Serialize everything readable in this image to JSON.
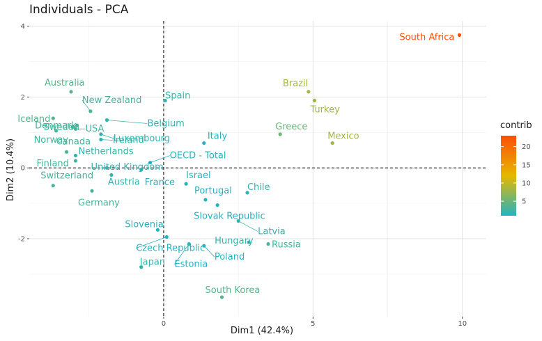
{
  "chart_data": {
    "type": "scatter",
    "title": "Individuals - PCA",
    "xlabel": "Dim1 (42.4%)",
    "ylabel": "Dim2 (10.4%)",
    "xlim": [
      -4.5,
      10.8
    ],
    "ylim": [
      -4.2,
      4.15
    ],
    "x_ticks": [
      0,
      5,
      10
    ],
    "y_ticks": [
      -2,
      0,
      2,
      4
    ],
    "grid": true,
    "reference_lines": {
      "x": 0,
      "y": 0
    },
    "legend": {
      "title": "contrib",
      "position": "right",
      "ticks": [
        5,
        10,
        15,
        20
      ]
    },
    "colors": {
      "low": "#24b3bf",
      "mid": "#e6b800",
      "high": "#fc4e07"
    },
    "points": [
      {
        "name": "South Africa",
        "x": 9.9,
        "y": 3.75,
        "contrib": 23
      },
      {
        "name": "Australia",
        "x": -3.1,
        "y": 2.15,
        "contrib": 4
      },
      {
        "name": "Iceland",
        "x": -3.7,
        "y": 1.4,
        "contrib": 4
      },
      {
        "name": "New Zealand",
        "x": -2.45,
        "y": 1.6,
        "contrib": 3
      },
      {
        "name": "Spain",
        "x": 0.05,
        "y": 1.9,
        "contrib": 2
      },
      {
        "name": "Sweden",
        "x": -2.9,
        "y": 1.2,
        "contrib": 3
      },
      {
        "name": "Belgium",
        "x": -1.9,
        "y": 1.35,
        "contrib": 2
      },
      {
        "name": "Denmark",
        "x": -3.05,
        "y": 1.15,
        "contrib": 3
      },
      {
        "name": "USA",
        "x": -2.95,
        "y": 1.1,
        "contrib": 3
      },
      {
        "name": "Luxembourg",
        "x": -2.1,
        "y": 0.95,
        "contrib": 2
      },
      {
        "name": "Ireland",
        "x": -2.1,
        "y": 0.8,
        "contrib": 2
      },
      {
        "name": "Norway",
        "x": -3.6,
        "y": 1.05,
        "contrib": 3
      },
      {
        "name": "Canada",
        "x": -3.25,
        "y": 0.45,
        "contrib": 3
      },
      {
        "name": "Netherlands",
        "x": -2.95,
        "y": 0.35,
        "contrib": 2
      },
      {
        "name": "Finland",
        "x": -2.95,
        "y": 0.2,
        "contrib": 3
      },
      {
        "name": "Switzerland",
        "x": -3.7,
        "y": -0.5,
        "contrib": 3
      },
      {
        "name": "Germany",
        "x": -2.4,
        "y": -0.65,
        "contrib": 3
      },
      {
        "name": "United Kingdom",
        "x": -1.9,
        "y": 0,
        "contrib": 2
      },
      {
        "name": "Austria",
        "x": -1.75,
        "y": -0.2,
        "contrib": 2
      },
      {
        "name": "OECD - Total",
        "x": -0.45,
        "y": 0.15,
        "contrib": 1
      },
      {
        "name": "France",
        "x": -0.75,
        "y": -0.05,
        "contrib": 1
      },
      {
        "name": "Italy",
        "x": 1.35,
        "y": 0.7,
        "contrib": 1
      },
      {
        "name": "Israel",
        "x": 0.75,
        "y": -0.45,
        "contrib": 1
      },
      {
        "name": "Portugal",
        "x": 1.4,
        "y": -0.9,
        "contrib": 1
      },
      {
        "name": "Slovak Republic",
        "x": 1.8,
        "y": -1.05,
        "contrib": 1
      },
      {
        "name": "Chile",
        "x": 2.8,
        "y": -0.7,
        "contrib": 2
      },
      {
        "name": "Latvia",
        "x": 2.5,
        "y": -1.5,
        "contrib": 2
      },
      {
        "name": "Slovenia",
        "x": -0.2,
        "y": -1.75,
        "contrib": 1
      },
      {
        "name": "Czech Republic",
        "x": 0.1,
        "y": -1.95,
        "contrib": 1
      },
      {
        "name": "Hungary",
        "x": 2.85,
        "y": -2.1,
        "contrib": 2
      },
      {
        "name": "Russia",
        "x": 3.5,
        "y": -2.15,
        "contrib": 3
      },
      {
        "name": "Poland",
        "x": 1.35,
        "y": -2.2,
        "contrib": 1
      },
      {
        "name": "Estonia",
        "x": 0.85,
        "y": -2.15,
        "contrib": 1
      },
      {
        "name": "Japan",
        "x": -0.75,
        "y": -2.8,
        "contrib": 2
      },
      {
        "name": "South Korea",
        "x": 1.95,
        "y": -3.65,
        "contrib": 4
      },
      {
        "name": "Brazil",
        "x": 4.85,
        "y": 2.15,
        "contrib": 8
      },
      {
        "name": "Turkey",
        "x": 5.05,
        "y": 1.9,
        "contrib": 8
      },
      {
        "name": "Greece",
        "x": 3.9,
        "y": 0.95,
        "contrib": 5
      },
      {
        "name": "Mexico",
        "x": 5.65,
        "y": 0.7,
        "contrib": 8
      }
    ]
  }
}
